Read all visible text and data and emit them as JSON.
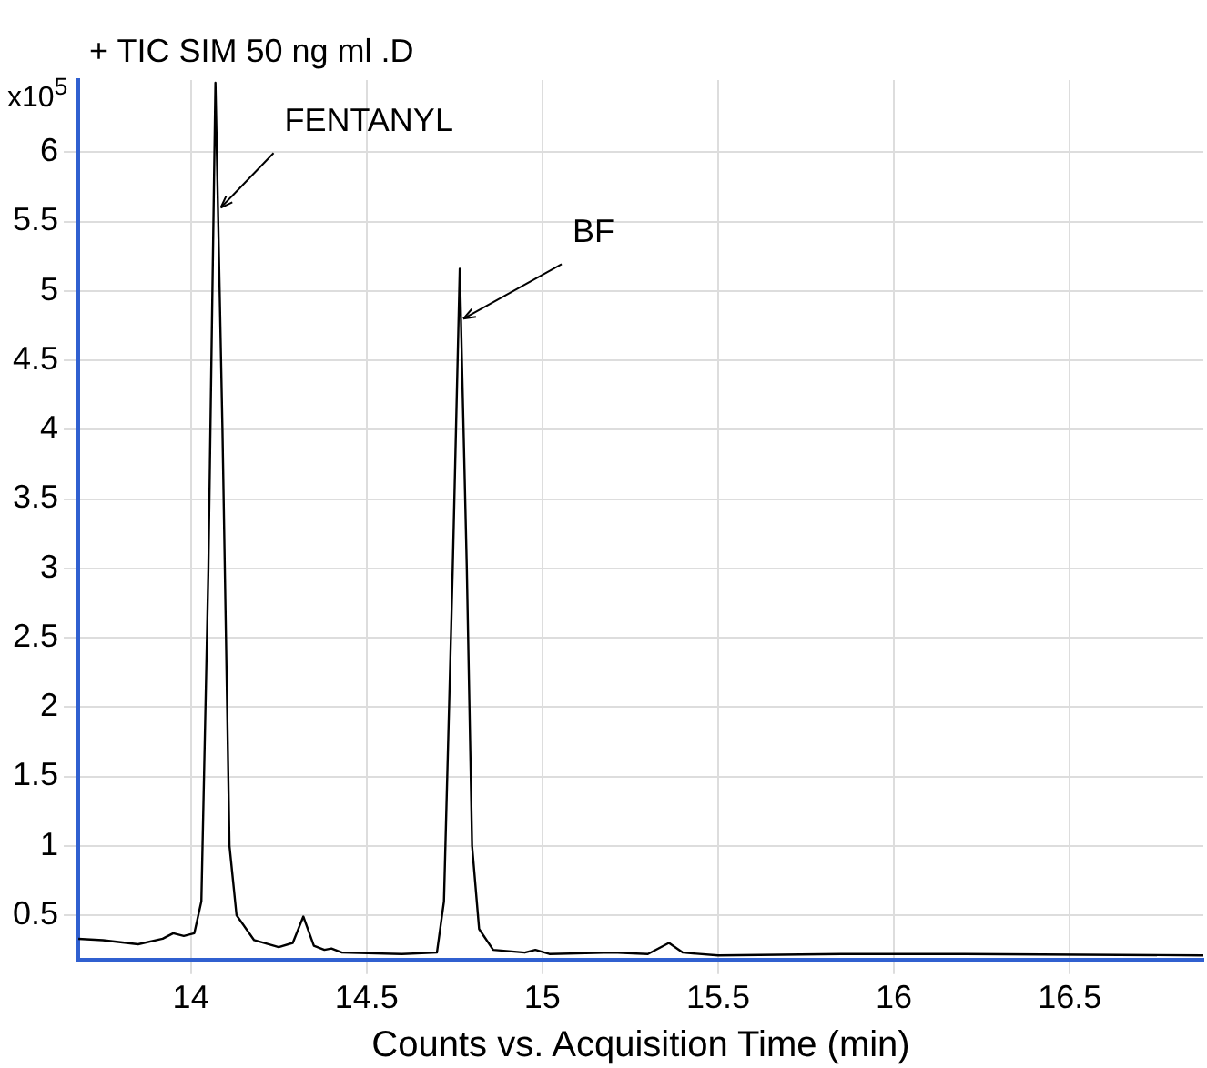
{
  "chart_data": {
    "type": "line",
    "title": "+ TIC SIM 50 ng ml .D",
    "xlabel": "Counts vs. Acquisition Time (min)",
    "ylabel": "x10$^{5}$",
    "x": [
      13.68,
      13.75,
      13.85,
      13.92,
      13.95,
      13.98,
      14.01,
      14.03,
      14.05,
      14.07,
      14.09,
      14.11,
      14.13,
      14.18,
      14.25,
      14.29,
      14.32,
      14.35,
      14.38,
      14.4,
      14.43,
      14.6,
      14.7,
      14.72,
      14.745,
      14.765,
      14.785,
      14.8,
      14.82,
      14.86,
      14.95,
      14.98,
      15.02,
      15.2,
      15.3,
      15.36,
      15.4,
      15.5,
      15.85,
      16.0,
      16.2,
      16.88
    ],
    "series": [
      {
        "color": "#000000",
        "values": [
          0.33,
          0.32,
          0.29,
          0.33,
          0.37,
          0.35,
          0.37,
          0.6,
          3.0,
          6.5,
          4.0,
          1.0,
          0.5,
          0.32,
          0.27,
          0.3,
          0.49,
          0.28,
          0.25,
          0.26,
          0.23,
          0.22,
          0.23,
          0.6,
          3.0,
          5.16,
          3.0,
          1.0,
          0.4,
          0.25,
          0.23,
          0.25,
          0.22,
          0.23,
          0.22,
          0.3,
          0.23,
          0.21,
          0.22,
          0.22,
          0.22,
          0.21
        ]
      }
    ],
    "xlim": [
      13.68,
      16.88
    ],
    "xticks": [
      14,
      14.5,
      15,
      15.5,
      16,
      16.5
    ],
    "ylim": [
      0.18,
      6.52
    ],
    "yticks": [
      0.5,
      1,
      1.5,
      2,
      2.5,
      3,
      3.5,
      4,
      4.5,
      5,
      5.5,
      6
    ],
    "grid": true,
    "legend": false,
    "marker": "none",
    "line_style": "solid",
    "annotations": [
      {
        "text": "FENTANYL",
        "x": 14.08,
        "y": 5.6
      },
      {
        "text": "BF",
        "x": 14.77,
        "y": 4.8
      }
    ]
  }
}
